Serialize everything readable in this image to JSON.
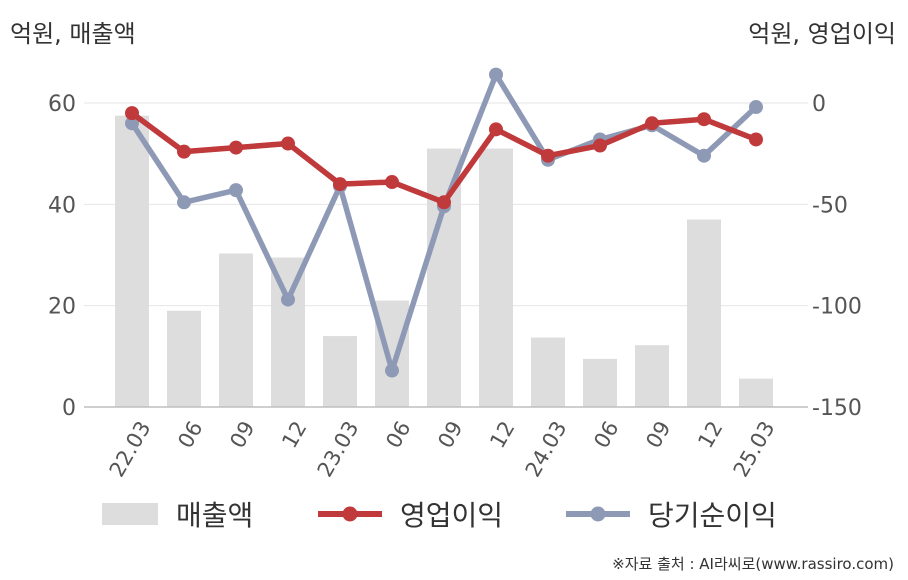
{
  "left_axis_title": "억원, 매출액",
  "right_axis_title": "억원, 영업이익",
  "source": "※자료 출처 : AI라씨로(www.rassiro.com)",
  "colors": {
    "bar": "#dddddd",
    "operating_profit": "#c0393b",
    "net_income": "#8e9ab5",
    "grid": "#e6e6e6",
    "axis": "#bfbfbf"
  },
  "chart_data": {
    "type": "bar+line",
    "categories": [
      "22.03",
      "06",
      "09",
      "12",
      "23.03",
      "06",
      "09",
      "12",
      "24.03",
      "06",
      "09",
      "12",
      "25.03"
    ],
    "y_left": {
      "ylim": [
        0,
        60
      ],
      "ticks": [
        0,
        20,
        40,
        60
      ]
    },
    "y_right": {
      "ylim": [
        -150,
        0
      ],
      "ticks": [
        0,
        -50,
        -100,
        -150
      ]
    },
    "series": [
      {
        "name": "매출액",
        "type": "bar",
        "axis": "left",
        "values": [
          57.5,
          19,
          30.3,
          29.5,
          14,
          21,
          51,
          51,
          13.7,
          9.5,
          12.2,
          37,
          5.6
        ]
      },
      {
        "name": "영업이익",
        "type": "line",
        "axis": "right",
        "values": [
          -5,
          -24,
          -22,
          -20,
          -40,
          -39,
          -49,
          -13,
          -26,
          -21,
          -10,
          -8,
          -18
        ]
      },
      {
        "name": "당기순이익",
        "type": "line",
        "axis": "right",
        "values": [
          -10,
          -49,
          -43,
          -97,
          -41,
          -132,
          -51,
          14,
          -28,
          -18,
          -11,
          -26,
          -2
        ]
      }
    ],
    "grid": true,
    "legend_position": "bottom"
  }
}
